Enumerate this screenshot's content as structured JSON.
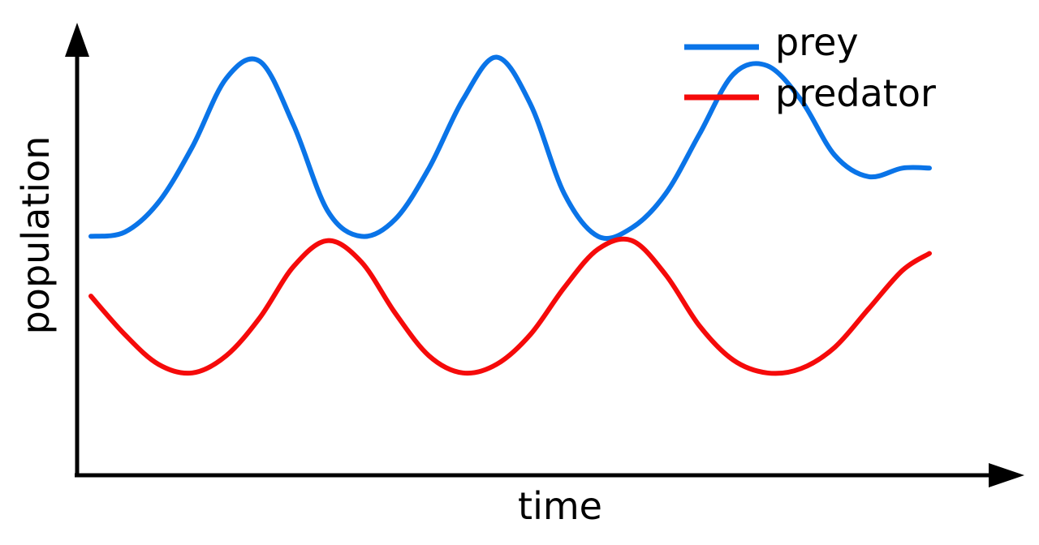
{
  "chart_data": {
    "type": "line",
    "xlabel": "time",
    "ylabel": "population",
    "xlim": [
      0,
      6.2
    ],
    "ylim": [
      0,
      1
    ],
    "grid": false,
    "legend_position": "top-right",
    "series": [
      {
        "name": "prey",
        "color": "#0a74e8",
        "x": [
          0,
          0.25,
          0.5,
          0.75,
          1.0,
          1.25,
          1.5,
          1.75,
          2.0,
          2.25,
          2.5,
          2.75,
          3.0,
          3.25,
          3.5,
          3.75,
          4.0,
          4.25,
          4.5,
          4.75,
          5.0,
          5.25,
          5.5,
          5.75,
          6.0,
          6.2
        ],
        "values": [
          0.56,
          0.57,
          0.64,
          0.77,
          0.93,
          0.97,
          0.82,
          0.62,
          0.56,
          0.6,
          0.72,
          0.88,
          0.98,
          0.87,
          0.66,
          0.56,
          0.58,
          0.66,
          0.8,
          0.94,
          0.96,
          0.88,
          0.75,
          0.7,
          0.72,
          0.72
        ]
      },
      {
        "name": "predator",
        "color": "#f50a0a",
        "x": [
          0,
          0.25,
          0.5,
          0.75,
          1.0,
          1.25,
          1.5,
          1.75,
          2.0,
          2.25,
          2.5,
          2.75,
          3.0,
          3.25,
          3.5,
          3.75,
          4.0,
          4.25,
          4.5,
          4.75,
          5.0,
          5.25,
          5.5,
          5.75,
          6.0,
          6.2
        ],
        "values": [
          0.42,
          0.33,
          0.26,
          0.24,
          0.28,
          0.37,
          0.49,
          0.55,
          0.5,
          0.38,
          0.28,
          0.24,
          0.26,
          0.33,
          0.44,
          0.53,
          0.55,
          0.47,
          0.35,
          0.27,
          0.24,
          0.25,
          0.3,
          0.39,
          0.48,
          0.52
        ]
      }
    ]
  }
}
